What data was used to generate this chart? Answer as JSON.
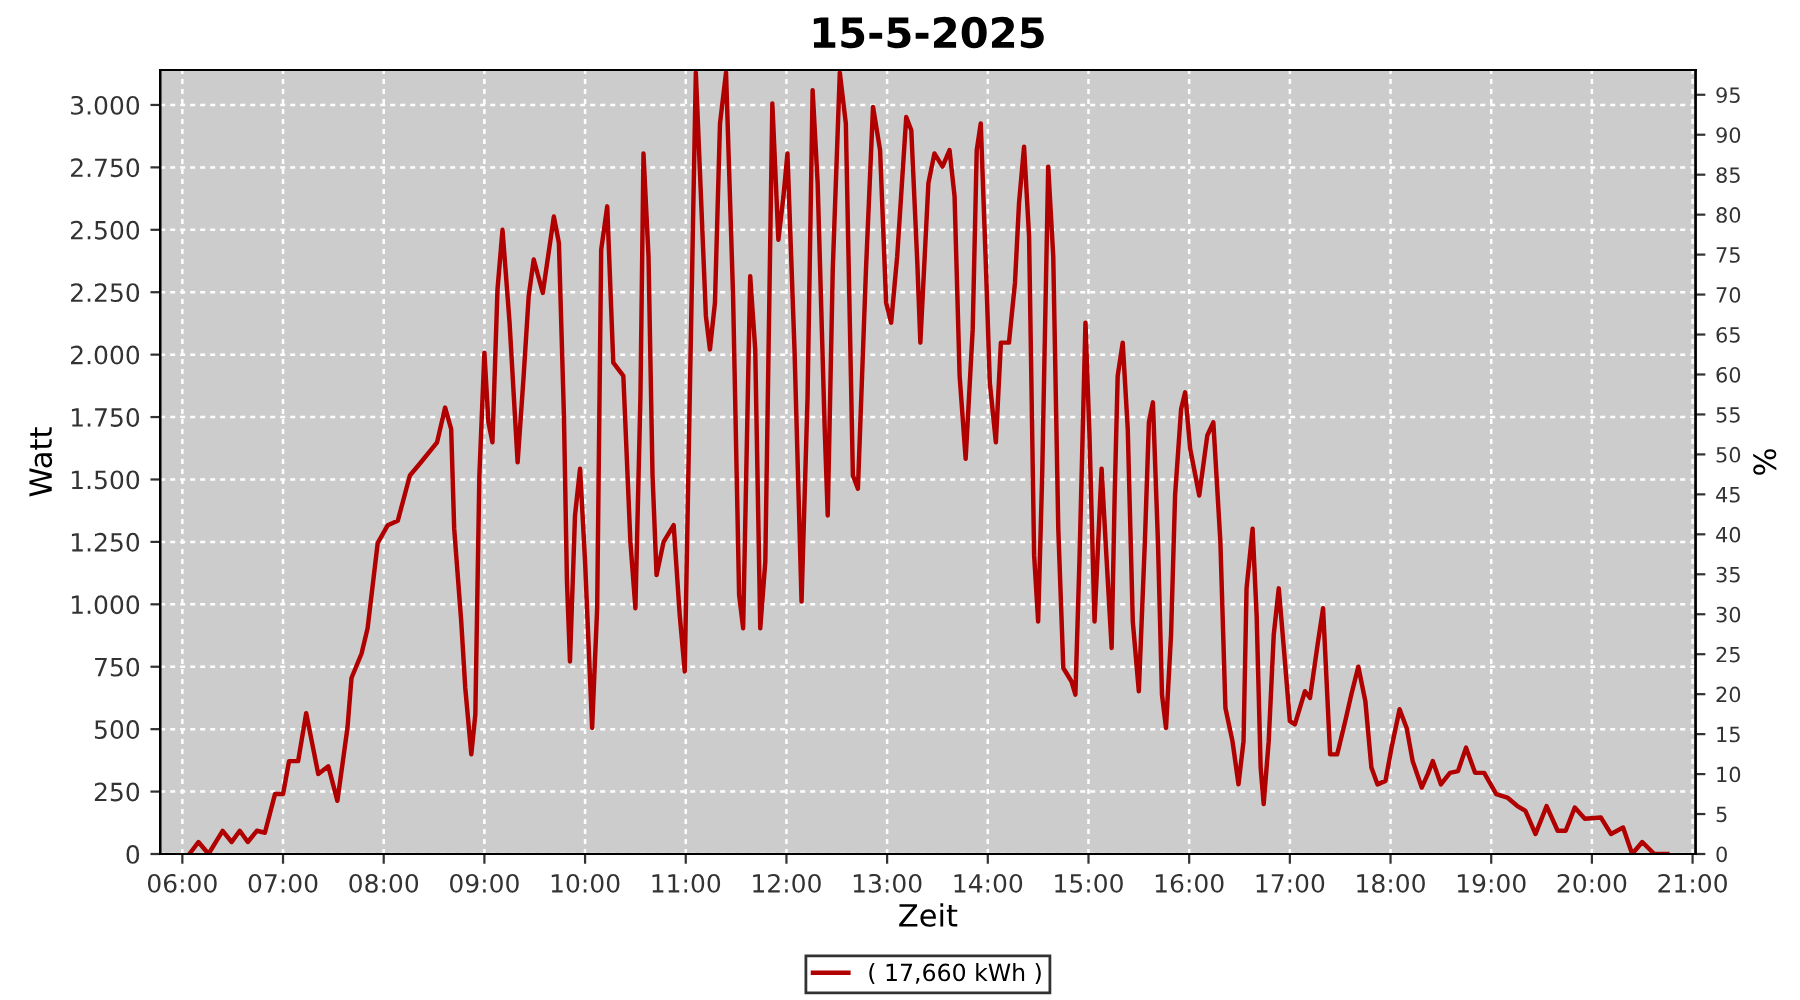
{
  "chart_data": {
    "type": "line",
    "title": "15-5-2025",
    "xlabel": "Zeit",
    "ylabel": "Watt",
    "y2label": "%",
    "xlim": [
      5.78,
      21.03
    ],
    "xticks": [
      {
        "value": 6,
        "label": "06:00"
      },
      {
        "value": 7,
        "label": "07:00"
      },
      {
        "value": 8,
        "label": "08:00"
      },
      {
        "value": 9,
        "label": "09:00"
      },
      {
        "value": 10,
        "label": "10:00"
      },
      {
        "value": 11,
        "label": "11:00"
      },
      {
        "value": 12,
        "label": "12:00"
      },
      {
        "value": 13,
        "label": "13:00"
      },
      {
        "value": 14,
        "label": "14:00"
      },
      {
        "value": 15,
        "label": "15:00"
      },
      {
        "value": 16,
        "label": "16:00"
      },
      {
        "value": 17,
        "label": "17:00"
      },
      {
        "value": 18,
        "label": "18:00"
      },
      {
        "value": 19,
        "label": "19:00"
      },
      {
        "value": 20,
        "label": "20:00"
      },
      {
        "value": 21,
        "label": "21:00"
      }
    ],
    "ylim": [
      0,
      3140
    ],
    "yticks": [
      0,
      250,
      500,
      750,
      {
        "value": 1000,
        "label": "1.000"
      },
      {
        "value": 1250,
        "label": "1.250"
      },
      {
        "value": 1500,
        "label": "1.500"
      },
      {
        "value": 1750,
        "label": "1.750"
      },
      {
        "value": 2000,
        "label": "2.000"
      },
      {
        "value": 2250,
        "label": "2.250"
      },
      {
        "value": 2500,
        "label": "2.500"
      },
      {
        "value": 2750,
        "label": "2.750"
      },
      {
        "value": 3000,
        "label": "3.000"
      }
    ],
    "y2lim": [
      0,
      98.1
    ],
    "y2ticks": [
      0,
      5,
      10,
      15,
      20,
      25,
      30,
      35,
      40,
      45,
      50,
      55,
      60,
      65,
      70,
      75,
      80,
      85,
      90,
      95
    ],
    "grid": true,
    "legend": "bottom",
    "line_style": "solid",
    "marker": "none",
    "series": [
      {
        "name": "( 17,660 kWh )",
        "color": "#b00000",
        "x": [
          6.07,
          6.16,
          6.26,
          6.4,
          6.49,
          6.57,
          6.65,
          6.74,
          6.82,
          6.92,
          7.0,
          7.06,
          7.15,
          7.23,
          7.35,
          7.45,
          7.54,
          7.64,
          7.68,
          7.78,
          7.84,
          7.94,
          8.04,
          8.14,
          8.26,
          8.37,
          8.53,
          8.61,
          8.67,
          8.7,
          8.77,
          8.81,
          8.87,
          8.91,
          8.95,
          9.0,
          9.04,
          9.08,
          9.13,
          9.18,
          9.25,
          9.33,
          9.39,
          9.44,
          9.49,
          9.58,
          9.69,
          9.74,
          9.79,
          9.82,
          9.85,
          9.9,
          9.95,
          10.0,
          10.07,
          10.12,
          10.16,
          10.22,
          10.28,
          10.38,
          10.45,
          10.5,
          10.55,
          10.58,
          10.63,
          10.67,
          10.71,
          10.78,
          10.88,
          10.94,
          10.99,
          11.04,
          11.1,
          11.14,
          11.2,
          11.24,
          11.29,
          11.34,
          11.4,
          11.47,
          11.53,
          11.57,
          11.64,
          11.69,
          11.74,
          11.79,
          11.86,
          11.92,
          11.97,
          12.01,
          12.08,
          12.15,
          12.21,
          12.26,
          12.31,
          12.38,
          12.41,
          12.46,
          12.53,
          12.59,
          12.66,
          12.71,
          12.79,
          12.86,
          12.93,
          12.99,
          13.04,
          13.1,
          13.19,
          13.24,
          13.3,
          13.33,
          13.41,
          13.47,
          13.55,
          13.62,
          13.67,
          13.72,
          13.78,
          13.85,
          13.89,
          13.93,
          13.98,
          14.02,
          14.08,
          14.13,
          14.21,
          14.27,
          14.31,
          14.36,
          14.41,
          14.46,
          14.5,
          14.54,
          14.6,
          14.65,
          14.7,
          14.75,
          14.83,
          14.87,
          14.91,
          14.97,
          15.01,
          15.06,
          15.13,
          15.17,
          15.23,
          15.26,
          15.29,
          15.34,
          15.39,
          15.44,
          15.5,
          15.56,
          15.6,
          15.64,
          15.69,
          15.73,
          15.77,
          15.82,
          15.86,
          15.92,
          15.96,
          16.01,
          16.1,
          16.18,
          16.24,
          16.31,
          16.36,
          16.43,
          16.49,
          16.54,
          16.57,
          16.63,
          16.67,
          16.71,
          16.74,
          16.79,
          16.84,
          16.89,
          16.94,
          17.0,
          17.05,
          17.15,
          17.2,
          17.28,
          17.33,
          17.4,
          17.47,
          17.55,
          17.61,
          17.68,
          17.75,
          17.81,
          17.87,
          17.95,
          18.01,
          18.09,
          18.16,
          18.22,
          18.31,
          18.37,
          18.42,
          18.5,
          18.59,
          18.67,
          18.75,
          18.84,
          18.93,
          19.05,
          19.16,
          19.26,
          19.34,
          19.44,
          19.55,
          19.66,
          19.74,
          19.83,
          19.93,
          20.09,
          20.19,
          20.31,
          20.4,
          20.5,
          20.62,
          20.75
        ],
        "values": [
          0,
          48,
          0,
          93,
          48,
          93,
          48,
          93,
          85,
          240,
          240,
          372,
          372,
          564,
          320,
          351,
          213,
          505,
          705,
          803,
          904,
          1245,
          1317,
          1335,
          1516,
          1569,
          1649,
          1788,
          1702,
          1303,
          931,
          665,
          399,
          559,
          1516,
          2008,
          1729,
          1649,
          2261,
          2500,
          2128,
          1569,
          1915,
          2234,
          2381,
          2247,
          2553,
          2447,
          1756,
          1091,
          771,
          1356,
          1543,
          1170,
          505,
          984,
          2420,
          2594,
          1968,
          1915,
          1250,
          984,
          1835,
          2806,
          2394,
          1516,
          1117,
          1250,
          1317,
          957,
          731,
          1835,
          3130,
          2740,
          2155,
          2021,
          2208,
          2926,
          3130,
          2234,
          1037,
          904,
          2314,
          2021,
          904,
          1170,
          3006,
          2460,
          2633,
          2806,
          2021,
          1011,
          1835,
          3059,
          2687,
          1702,
          1356,
          2341,
          3130,
          2926,
          1516,
          1463,
          2341,
          2992,
          2819,
          2208,
          2128,
          2394,
          2952,
          2899,
          2367,
          2048,
          2687,
          2806,
          2753,
          2819,
          2633,
          1915,
          1583,
          2101,
          2819,
          2926,
          2367,
          1888,
          1649,
          2048,
          2048,
          2288,
          2607,
          2833,
          2473,
          1197,
          931,
          1516,
          2753,
          2394,
          1303,
          745,
          692,
          638,
          1170,
          2128,
          1676,
          931,
          1543,
          1250,
          825,
          1436,
          1915,
          2048,
          1702,
          931,
          652,
          1250,
          1729,
          1809,
          1250,
          638,
          505,
          878,
          1436,
          1782,
          1849,
          1623,
          1436,
          1676,
          1729,
          1250,
          585,
          452,
          279,
          452,
          1064,
          1303,
          957,
          346,
          200,
          452,
          878,
          1064,
          825,
          532,
          519,
          652,
          625,
          851,
          984,
          399,
          399,
          532,
          638,
          750,
          612,
          346,
          279,
          293,
          426,
          580,
          505,
          372,
          266,
          320,
          372,
          279,
          325,
          332,
          426,
          325,
          325,
          240,
          226,
          192,
          173,
          80,
          192,
          93,
          93,
          186,
          141,
          146,
          80,
          106,
          0,
          48,
          0,
          0
        ]
      }
    ]
  }
}
